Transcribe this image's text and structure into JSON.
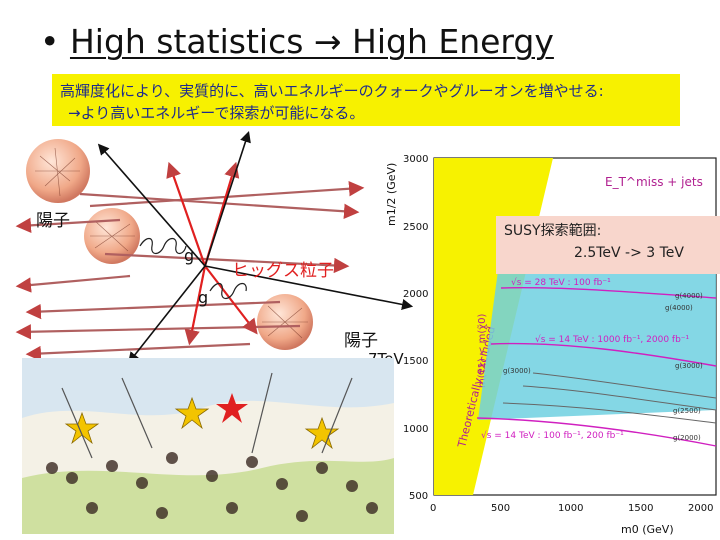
{
  "slide": {
    "bullet": "•",
    "title": "High statistics → High Energy",
    "note_line1": "高輝度化により、実質的に、高いエネルギーのクォークやグルーオンを増やせる:",
    "note_line2": "→より高いエネルギーで探索が可能になる。",
    "proton_label_1": "陽子",
    "proton_label_2": "陽子",
    "gluon_label_1": "g",
    "gluon_label_2": "g",
    "higgs_label": "ヒッグス粒子",
    "energy_label": "7TeV",
    "susy_line1": "SUSY探索範囲:",
    "susy_line2": "2.5TeV -> 3 TeV"
  },
  "colors": {
    "note_bg": "#f7f100",
    "note_text": "#1e2b8c",
    "susy_bg": "#f8d6cc",
    "proton": "#f0b49a",
    "red_arrow": "#e02020",
    "plot_excluded": "#f7f200",
    "plot_band": "#6ed0e0",
    "magenta": "#d020c0"
  },
  "chart_data": {
    "type": "line",
    "xlabel": "m0 (GeV)",
    "ylabel": "m1/2 (GeV)",
    "x_ticks": [
      "0",
      "500",
      "1000",
      "1500",
      "2000"
    ],
    "y_ticks": [
      "3000",
      "2500",
      "2000",
      "1500",
      "1000",
      "500"
    ],
    "xlim": [
      0,
      2000
    ],
    "ylim": [
      500,
      3000
    ],
    "header": "E_T^miss + jets",
    "excluded_label": "Theoretically excluded",
    "side_label": "m(τ̃1) < m(χ̃0)",
    "series": [
      {
        "name": "√s = 28 TeV : 100 fb⁻¹",
        "x": [
          500,
          1000,
          1500,
          2000
        ],
        "y": [
          2110,
          2070,
          2040,
          2000
        ]
      },
      {
        "name": "√s = 14 TeV : 1000 fb⁻¹, 2000 fb⁻¹",
        "x": [
          500,
          1000,
          1500,
          2000
        ],
        "y": [
          1690,
          1670,
          1600,
          1520
        ]
      },
      {
        "name": "√s = 14 TeV : 100 fb⁻¹, 200 fb⁻¹",
        "x": [
          500,
          1000,
          1500,
          2000
        ],
        "y": [
          1140,
          1110,
          1050,
          1000
        ]
      }
    ],
    "contour_labels": [
      "g(4000)",
      "g(4000)",
      "g(3000)",
      "g(3000)",
      "g(2500)",
      "g(2000)"
    ]
  }
}
